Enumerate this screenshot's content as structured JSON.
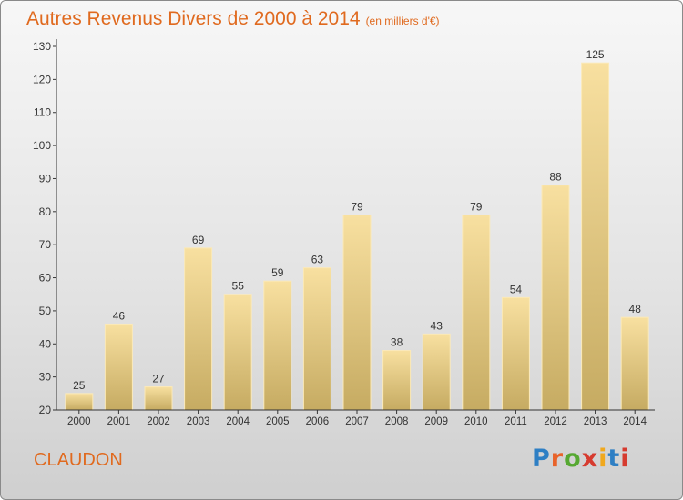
{
  "title": "Autres Revenus Divers de 2000 à 2014",
  "subtitle": "(en milliers d'€)",
  "commune": "CLAUDON",
  "logo": {
    "text": "Proxiti",
    "letter_colors": [
      "#2e7fc4",
      "#e8632a",
      "#56a832",
      "#d63b2f",
      "#f0a81d",
      "#2e7fc4",
      "#d63b2f"
    ]
  },
  "colors": {
    "accent": "#e06a1f",
    "bar_light": "#f8e0a0",
    "bar_dark": "#c6ab62",
    "axis": "#333333"
  },
  "chart_data": {
    "type": "bar",
    "title": "Autres Revenus Divers de 2000 à 2014",
    "subtitle": "(en milliers d'€)",
    "categories": [
      "2000",
      "2001",
      "2002",
      "2003",
      "2004",
      "2005",
      "2006",
      "2007",
      "2008",
      "2009",
      "2010",
      "2011",
      "2012",
      "2013",
      "2014"
    ],
    "values": [
      25,
      46,
      27,
      69,
      55,
      59,
      63,
      79,
      38,
      43,
      79,
      54,
      88,
      125,
      48
    ],
    "data_labels": [
      "25",
      "46",
      "27",
      "69",
      "55",
      "59",
      "63",
      "79",
      "38",
      "43",
      "79",
      "54",
      "88",
      "125",
      "48"
    ],
    "ylim": [
      20,
      130
    ],
    "yticks": [
      20,
      30,
      40,
      50,
      60,
      70,
      80,
      90,
      100,
      110,
      120,
      130
    ],
    "ytick_labels": [
      "20",
      "30",
      "40",
      "50",
      "60",
      "70",
      "80",
      "90",
      "100",
      "110",
      "120",
      "130"
    ],
    "xlabel": "",
    "ylabel": "",
    "grid": false,
    "legend": "none"
  }
}
